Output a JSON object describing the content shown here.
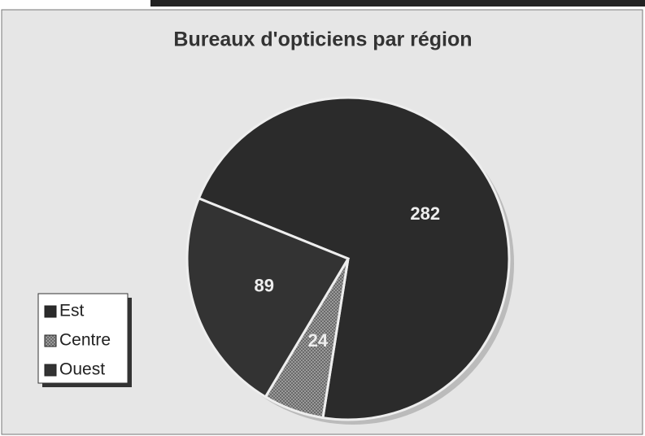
{
  "chart_data": {
    "type": "pie",
    "title": "Bureaux d'opticiens par région",
    "categories": [
      "Est",
      "Centre",
      "Ouest"
    ],
    "values": [
      282,
      24,
      89
    ],
    "colors": [
      "#2b2b2b",
      "#8a8a8a",
      "#333333"
    ],
    "legend": "bottom-left"
  }
}
